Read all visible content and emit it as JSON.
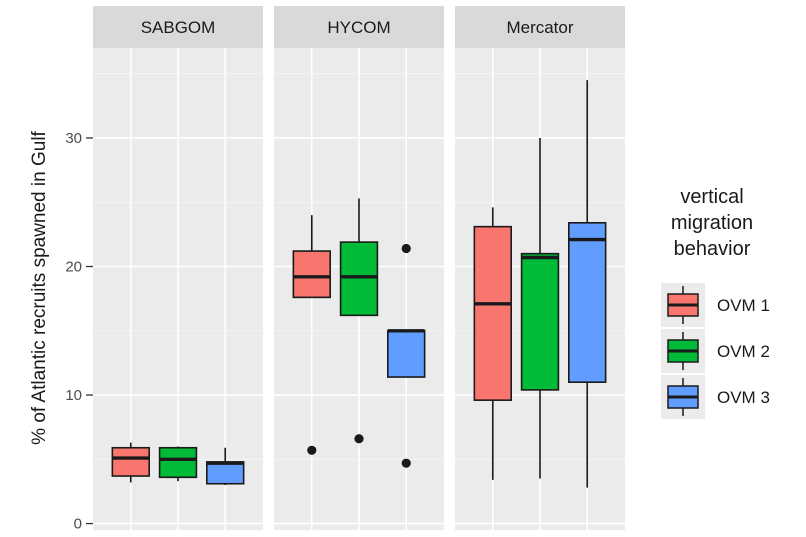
{
  "chart_data": {
    "type": "boxplot",
    "ylabel": "% of Atlantic recruits spawned in Gulf",
    "ylim": [
      -0.5,
      37
    ],
    "y_ticks": [
      0,
      10,
      20,
      30
    ],
    "grid": true,
    "legend": {
      "title_lines": [
        "vertical",
        "migration",
        "behavior"
      ],
      "placement": "right",
      "entries": [
        "OVM 1",
        "OVM 2",
        "OVM 3"
      ]
    },
    "colors": {
      "OVM 1": "#f8766d",
      "OVM 2": "#00ba38",
      "OVM 3": "#619cff",
      "panel": "#ebebeb",
      "strip": "#d9d9d9",
      "gridline": "#ffffff"
    },
    "facets": [
      {
        "name": "SABGOM",
        "boxes": [
          {
            "series": "OVM 1",
            "whisker_low": 3.2,
            "q1": 3.7,
            "median": 5.1,
            "q3": 5.9,
            "whisker_high": 6.3,
            "outliers": []
          },
          {
            "series": "OVM 2",
            "whisker_low": 3.3,
            "q1": 3.6,
            "median": 5.0,
            "q3": 5.9,
            "whisker_high": 6.0,
            "outliers": []
          },
          {
            "series": "OVM 3",
            "whisker_low": 3.0,
            "q1": 3.1,
            "median": 4.7,
            "q3": 4.8,
            "whisker_high": 5.9,
            "outliers": []
          }
        ]
      },
      {
        "name": "HYCOM",
        "boxes": [
          {
            "series": "OVM 1",
            "whisker_low": 17.6,
            "q1": 17.6,
            "median": 19.2,
            "q3": 21.2,
            "whisker_high": 24.0,
            "outliers": [
              5.7
            ]
          },
          {
            "series": "OVM 2",
            "whisker_low": 16.2,
            "q1": 16.2,
            "median": 19.2,
            "q3": 21.9,
            "whisker_high": 25.3,
            "outliers": [
              6.6
            ]
          },
          {
            "series": "OVM 3",
            "whisker_low": 11.4,
            "q1": 11.4,
            "median": 15.0,
            "q3": 15.0,
            "whisker_high": 15.0,
            "outliers": [
              21.4,
              4.7
            ]
          }
        ]
      },
      {
        "name": "Mercator",
        "boxes": [
          {
            "series": "OVM 1",
            "whisker_low": 3.4,
            "q1": 9.6,
            "median": 17.1,
            "q3": 23.1,
            "whisker_high": 24.6,
            "outliers": []
          },
          {
            "series": "OVM 2",
            "whisker_low": 3.5,
            "q1": 10.4,
            "median": 20.7,
            "q3": 21.0,
            "whisker_high": 30.0,
            "outliers": []
          },
          {
            "series": "OVM 3",
            "whisker_low": 2.8,
            "q1": 11.0,
            "median": 22.1,
            "q3": 23.4,
            "whisker_high": 34.5,
            "outliers": []
          }
        ]
      }
    ]
  }
}
